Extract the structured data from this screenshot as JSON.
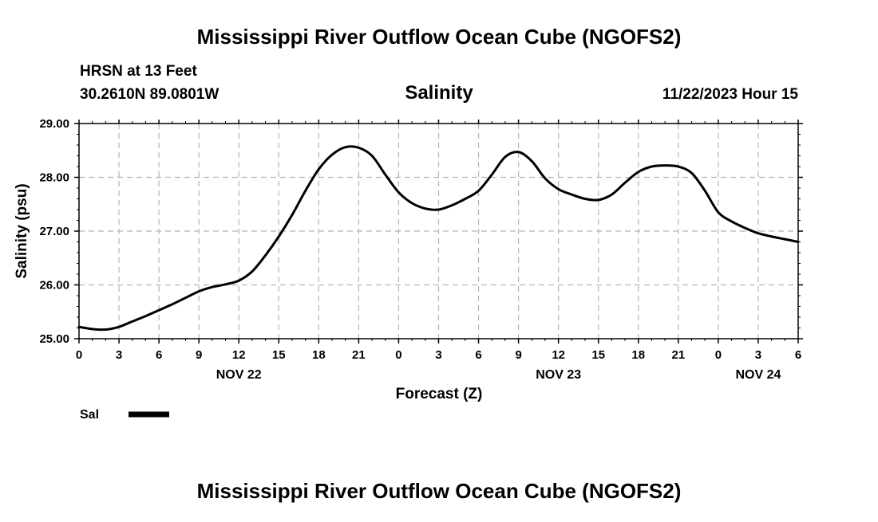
{
  "chart_data": {
    "type": "line",
    "title": "Mississippi River Outflow Ocean Cube (NGOFS2)",
    "footer_title": "Mississippi River Outflow Ocean Cube (NGOFS2)",
    "station": "HRSN at 13 Feet",
    "coordinates": "30.2610N  89.0801W",
    "subtitle": "Salinity",
    "timestamp": "11/22/2023 Hour 15",
    "xlabel": "Forecast (Z)",
    "ylabel": "Salinity (psu)",
    "xlim": [
      0,
      54
    ],
    "ylim": [
      25,
      29
    ],
    "x_tick_values": [
      0,
      3,
      6,
      9,
      12,
      15,
      18,
      21,
      24,
      27,
      30,
      33,
      36,
      39,
      42,
      45,
      48,
      51,
      54
    ],
    "x_tick_labels": [
      "0",
      "3",
      "6",
      "9",
      "12",
      "15",
      "18",
      "21",
      "0",
      "3",
      "6",
      "9",
      "12",
      "15",
      "18",
      "21",
      "0",
      "3",
      "6"
    ],
    "y_tick_values": [
      25,
      26,
      27,
      28,
      29
    ],
    "y_tick_labels": [
      "25.00",
      "26.00",
      "27.00",
      "28.00",
      "29.00"
    ],
    "date_labels": [
      {
        "label": "NOV 22",
        "x": 12
      },
      {
        "label": "NOV 23",
        "x": 36
      },
      {
        "label": "NOV 24",
        "x": 51
      }
    ],
    "grid": true,
    "legend": {
      "position": "bottom-left",
      "entries": [
        "Sal"
      ]
    },
    "series": [
      {
        "name": "Sal",
        "color": "#000000",
        "x": [
          0,
          1,
          2,
          3,
          4,
          5,
          6,
          7,
          8,
          9,
          10,
          11,
          12,
          13,
          14,
          15,
          16,
          17,
          18,
          19,
          20,
          21,
          22,
          23,
          24,
          25,
          26,
          27,
          28,
          29,
          30,
          31,
          32,
          33,
          34,
          35,
          36,
          37,
          38,
          39,
          40,
          41,
          42,
          43,
          44,
          45,
          46,
          47,
          48,
          49,
          50,
          51,
          52,
          53,
          54
        ],
        "values": [
          25.22,
          25.18,
          25.17,
          25.22,
          25.32,
          25.42,
          25.53,
          25.64,
          25.76,
          25.88,
          25.96,
          26.01,
          26.08,
          26.25,
          26.55,
          26.9,
          27.3,
          27.75,
          28.15,
          28.42,
          28.56,
          28.55,
          28.4,
          28.05,
          27.72,
          27.52,
          27.42,
          27.4,
          27.48,
          27.6,
          27.75,
          28.05,
          28.38,
          28.47,
          28.3,
          27.98,
          27.78,
          27.68,
          27.6,
          27.58,
          27.68,
          27.9,
          28.1,
          28.2,
          28.22,
          28.2,
          28.08,
          27.75,
          27.35,
          27.18,
          27.06,
          26.96,
          26.9,
          26.85,
          26.8
        ]
      }
    ]
  }
}
